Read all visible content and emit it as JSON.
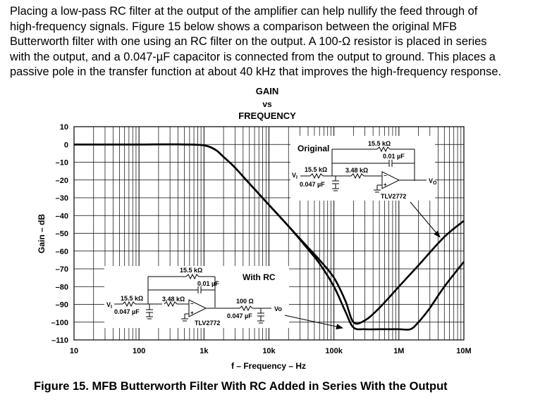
{
  "paragraph": [
    "Placing a low-pass RC filter at the output of the amplifier can help nullify the feed through of",
    "high-frequency signals. Figure 15 below shows a comparison between the original MFB",
    "Butterworth filter with one using an RC filter on the output. A 100-Ω resistor is placed in series",
    "with the output, and a 0.047-µF capacitor is connected from the output to ground. This places a",
    "passive pole in the transfer function at about 40 kHz that improves the high-frequency response."
  ],
  "caption": "Figure 15.  MFB Butterworth Filter With RC Added in Series With the Output",
  "chart_data": {
    "type": "line",
    "title": [
      "GAIN",
      "vs",
      "FREQUENCY"
    ],
    "xlabel": "f – Frequency – Hz",
    "ylabel": "Gain – dB",
    "xscale": "log",
    "xlim": [
      10,
      10000000
    ],
    "ylim": [
      -110,
      10
    ],
    "grid": true,
    "x_ticks": [
      10,
      100,
      1000,
      10000,
      100000,
      1000000,
      10000000
    ],
    "x_tick_labels": [
      "10",
      "100",
      "1k",
      "10k",
      "100k",
      "1M",
      "10M"
    ],
    "y_ticks": [
      10,
      0,
      -10,
      -20,
      -30,
      -40,
      -50,
      -60,
      -70,
      -80,
      -90,
      -100,
      -110
    ],
    "y_tick_labels": [
      "10",
      "0",
      "–10",
      "–20",
      "–30",
      "–40",
      "–50",
      "–60",
      "–70",
      "–80",
      "–90",
      "–100",
      "–110"
    ],
    "series": [
      {
        "name": "Original",
        "x": [
          10,
          100,
          500,
          1000,
          1500,
          2000,
          3000,
          5000,
          10000,
          20000,
          40000,
          60000,
          100000,
          150000,
          200000,
          300000,
          500000,
          1000000,
          2000000,
          5000000,
          10000000
        ],
        "y": [
          0,
          0,
          0,
          -0.5,
          -3,
          -7,
          -13,
          -22,
          -34,
          -46,
          -58,
          -65,
          -75,
          -88,
          -100,
          -99,
          -92,
          -80,
          -68,
          -52,
          -43
        ]
      },
      {
        "name": "With RC",
        "x": [
          10,
          100,
          500,
          1000,
          1500,
          2000,
          3000,
          5000,
          10000,
          20000,
          40000,
          60000,
          100000,
          150000,
          200000,
          300000,
          500000,
          1000000,
          1500000,
          2000000,
          3000000,
          5000000,
          10000000
        ],
        "y": [
          0,
          0,
          0,
          -0.5,
          -3,
          -7,
          -13,
          -22,
          -34,
          -46,
          -59,
          -67,
          -80,
          -94,
          -103,
          -104,
          -104,
          -104,
          -104,
          -100,
          -92,
          -80,
          -66
        ]
      }
    ],
    "annotations": {
      "original": {
        "label": "Original",
        "r_top": "15.5 kΩ",
        "c_top": "0.01 µF",
        "r1": "15.5 kΩ",
        "r2": "3.48 kΩ",
        "c_gnd": "0.047 µF",
        "vi": "V",
        "vi_sub": "I",
        "vo": "V",
        "vo_sub": "O",
        "opamp": "TLV2772"
      },
      "with_rc": {
        "label": "With RC",
        "r_top": "15.5 kΩ",
        "c_top": "0.01 µF",
        "r1": "15.5 kΩ",
        "r2": "3.48 kΩ",
        "c_gnd": "0.047 µF",
        "vi": "V",
        "vi_sub": "I",
        "vo": "Vo",
        "opamp": "TLV2772",
        "r_out": "100 Ω",
        "c_out": "0.047 µF"
      }
    }
  }
}
